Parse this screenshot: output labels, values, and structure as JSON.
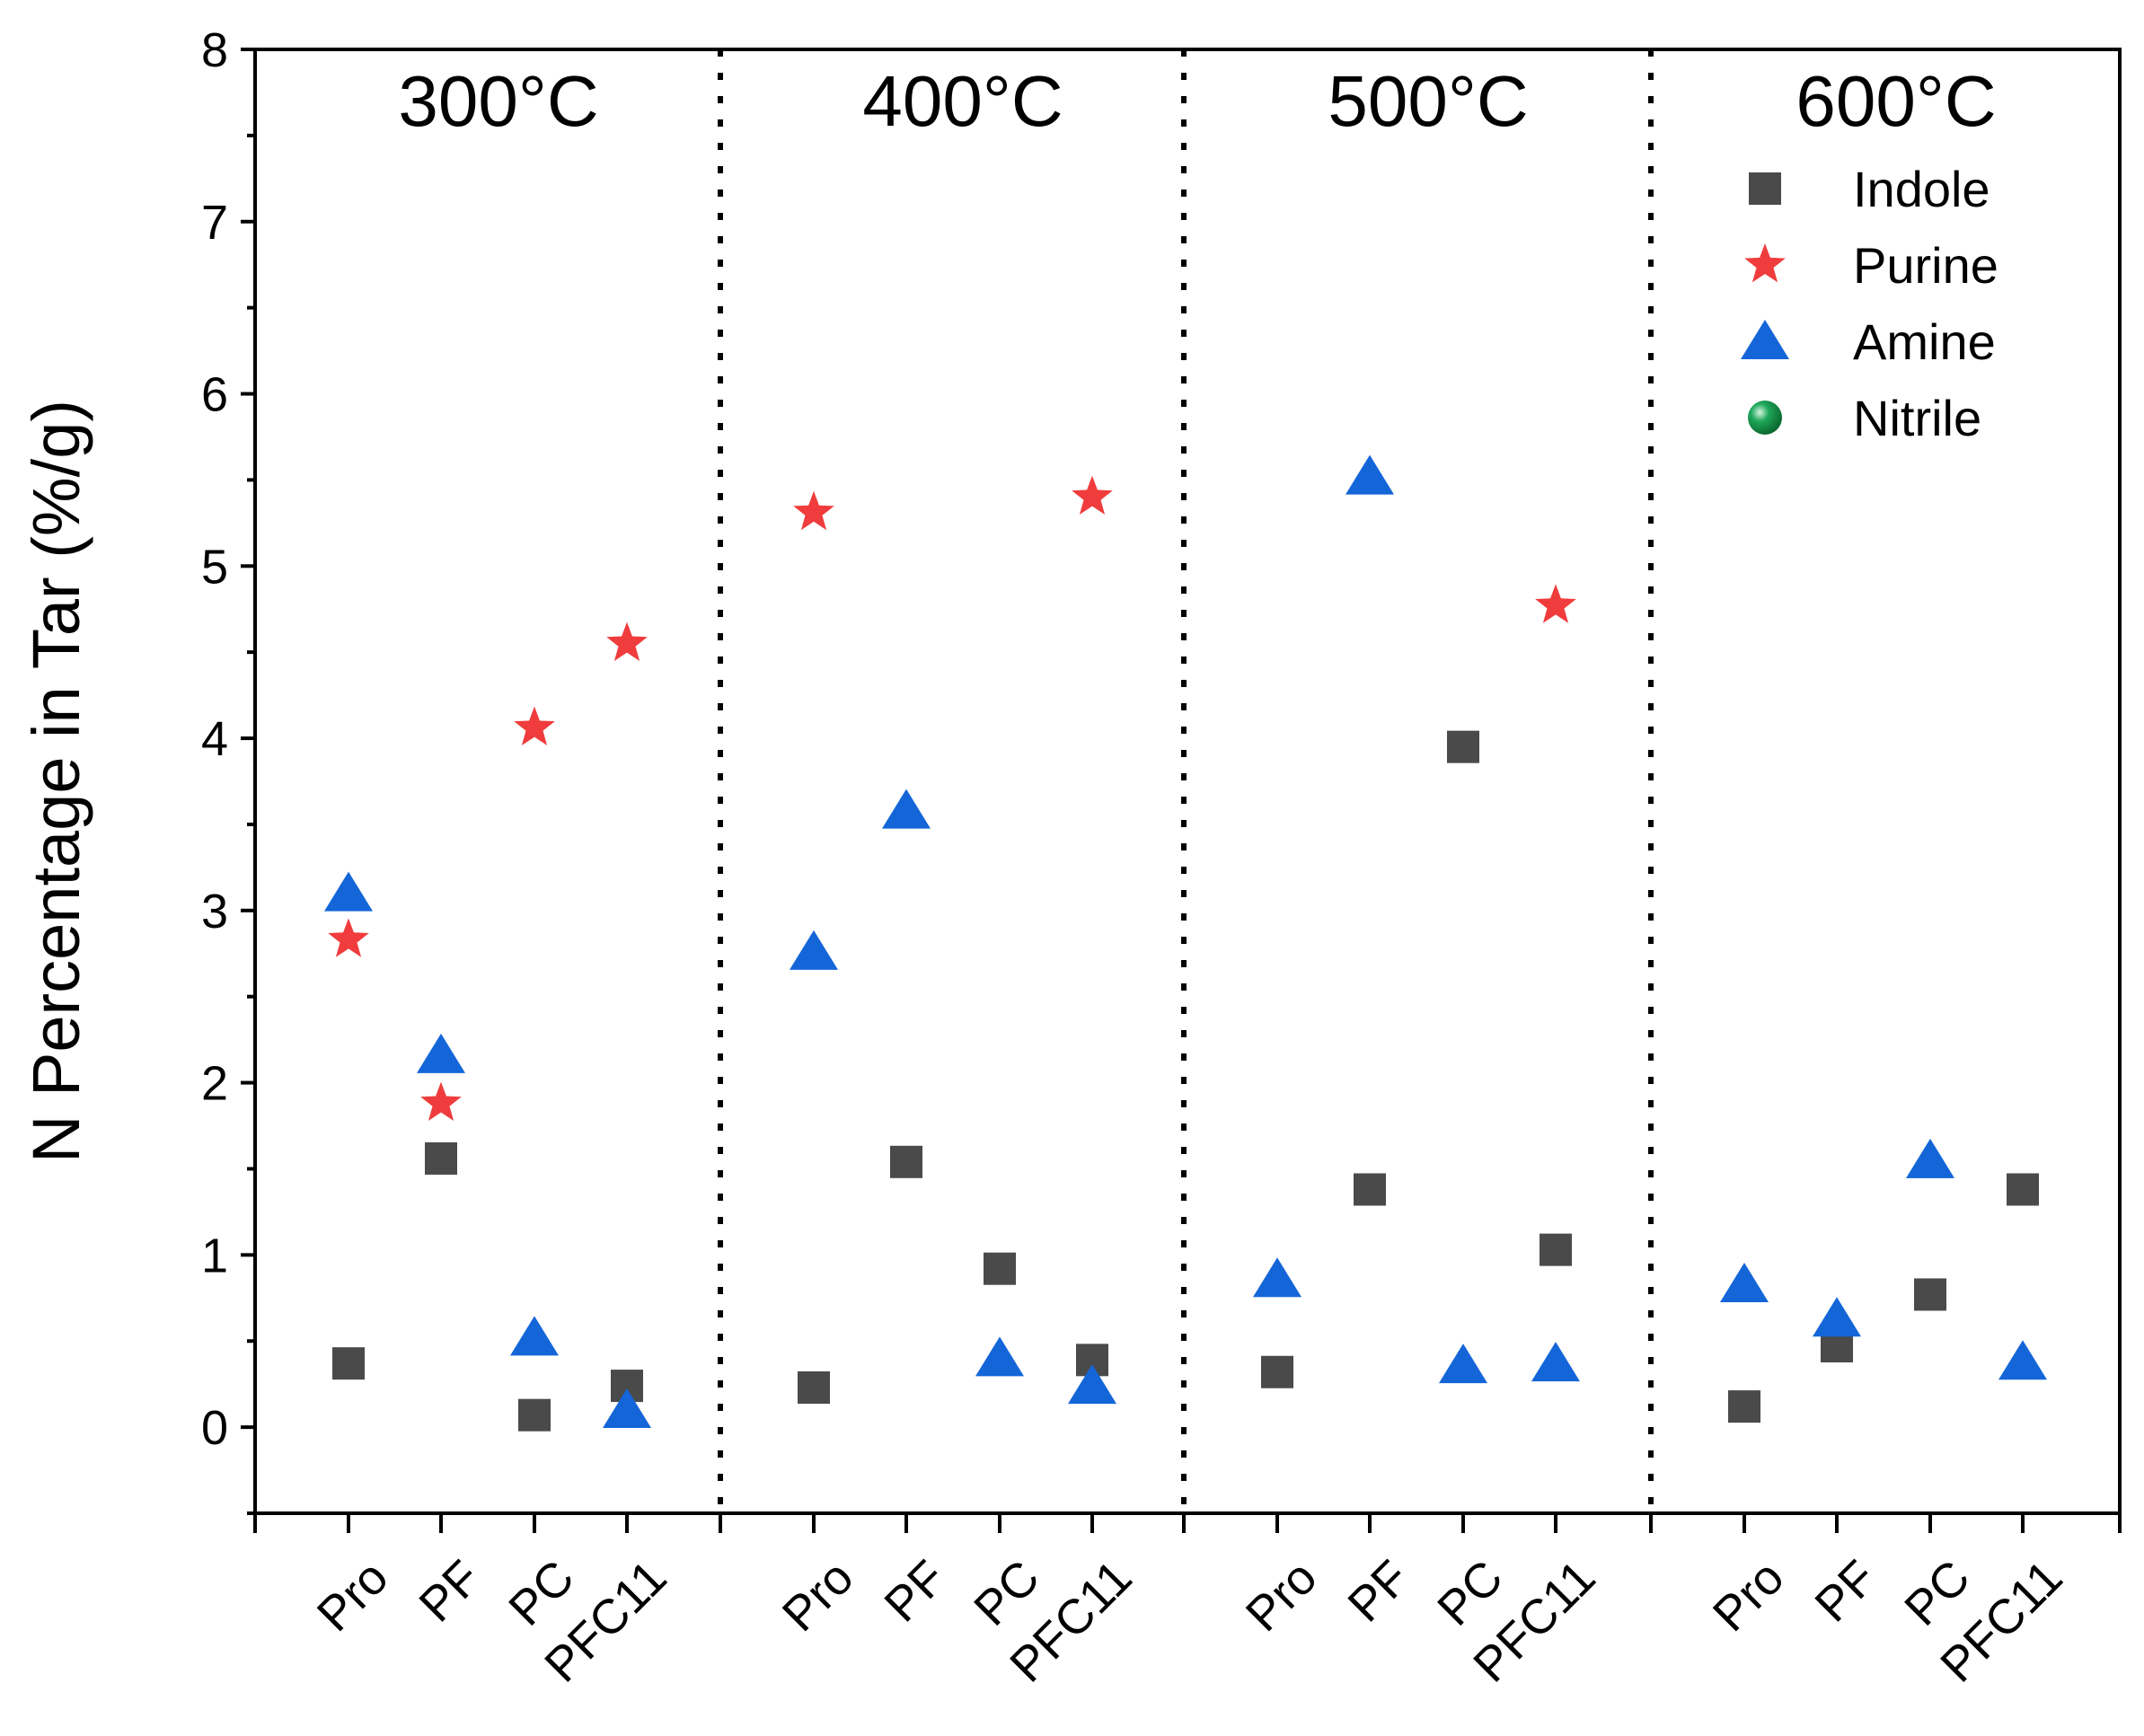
{
  "chart_data": {
    "type": "scatter",
    "ylabel": "N Percentage in Tar (%/g)",
    "xlabel": "",
    "ylim": [
      -0.5,
      8
    ],
    "yticks": [
      0,
      1,
      2,
      3,
      4,
      5,
      6,
      7,
      8
    ],
    "groups": [
      "300°C",
      "400°C",
      "500°C",
      "600°C"
    ],
    "categories": [
      "Pro",
      "PF",
      "PC",
      "PFC11"
    ],
    "legend_position": "top-right",
    "series": [
      {
        "name": "Indole",
        "marker": "square",
        "color": "#4a4a4a",
        "values": [
          [
            0.37,
            1.56,
            0.07,
            0.24
          ],
          [
            0.23,
            1.54,
            0.92,
            0.39
          ],
          [
            0.32,
            1.38,
            3.95,
            1.03
          ],
          [
            0.12,
            0.47,
            0.77,
            1.38
          ]
        ]
      },
      {
        "name": "Purine",
        "marker": "star",
        "color": "#f03c3c",
        "values": [
          [
            2.83,
            1.88,
            4.06,
            4.55
          ],
          [
            5.31,
            null,
            null,
            5.4
          ],
          [
            null,
            null,
            null,
            4.77
          ],
          [
            null,
            null,
            null,
            null
          ]
        ]
      },
      {
        "name": "Amine",
        "marker": "triangle",
        "color": "#1466d8",
        "values": [
          [
            3.1,
            2.16,
            0.52,
            0.1
          ],
          [
            2.76,
            3.58,
            0.4,
            0.24
          ],
          [
            0.86,
            5.52,
            0.36,
            0.37
          ],
          [
            0.83,
            0.63,
            1.55,
            0.38
          ]
        ]
      },
      {
        "name": "Nitrile",
        "marker": "circle",
        "color": "#1fa85a",
        "values": [
          [
            null,
            null,
            null,
            null
          ],
          [
            null,
            null,
            null,
            null
          ],
          [
            null,
            null,
            null,
            null
          ],
          [
            null,
            null,
            null,
            null
          ]
        ]
      }
    ]
  }
}
